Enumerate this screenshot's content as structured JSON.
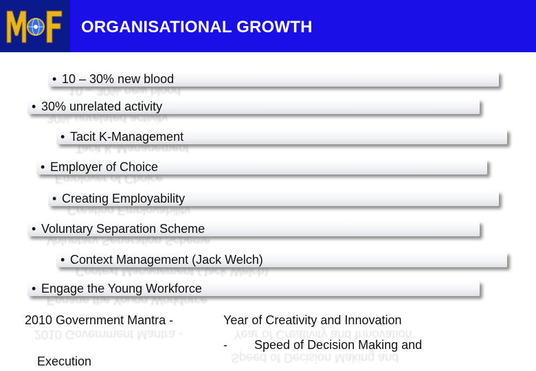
{
  "header": {
    "title": "ORGANISATIONAL GROWTH",
    "logo_text": "MOF",
    "accent_color": "#1a0fe6"
  },
  "bullet_glyph": "•",
  "items": [
    {
      "label": "10 – 30% new blood"
    },
    {
      "label": "30% unrelated activity"
    },
    {
      "label": "Tacit K-Management"
    },
    {
      "label": "Employer of Choice"
    },
    {
      "label": "Creating Employability"
    },
    {
      "label": "Voluntary Separation Scheme"
    },
    {
      "label": "Context Management (Jack Welch)"
    },
    {
      "label": "Engage the Young Workforce"
    }
  ],
  "footer": {
    "mantra_label": "2010 Government Mantra  -",
    "line1": "Year of Creativity and Innovation",
    "dash": "-",
    "line2": "Speed of Decision Making and",
    "line3": "Execution"
  }
}
